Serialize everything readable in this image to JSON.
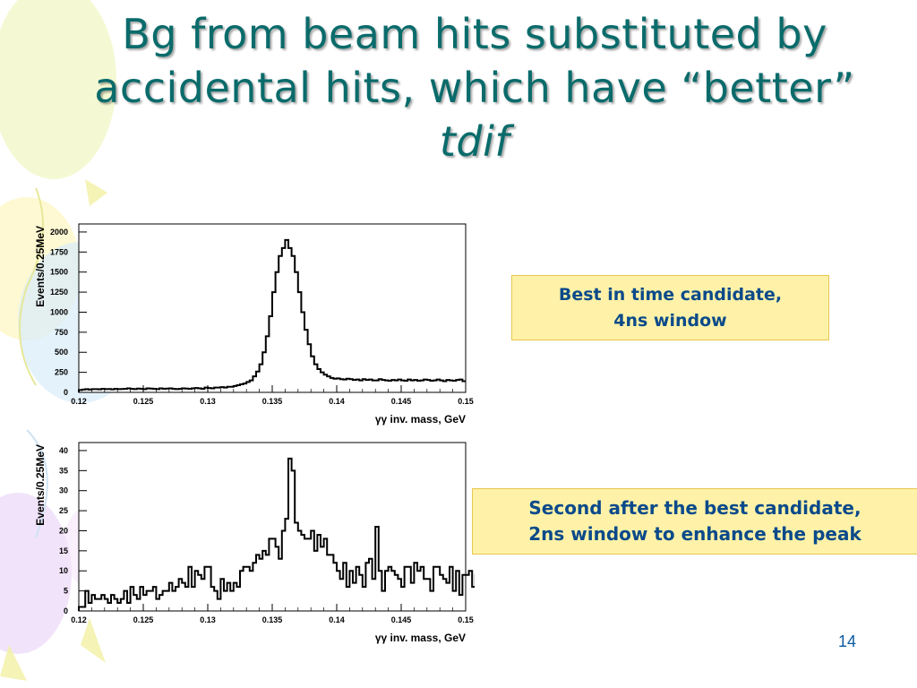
{
  "slide": {
    "title_main": "Bg from beam hits substituted by accidental hits, which have “better”",
    "title_emphasis": "tdif",
    "callouts": [
      {
        "line1": "Best in time candidate,",
        "line2": "4ns window"
      },
      {
        "line1": "Second after the best candidate,",
        "line2": "2ns window to enhance the peak"
      }
    ],
    "page_number": "14"
  },
  "colors": {
    "title": "#0a6b6b",
    "callout_bg": "#fff2a8",
    "callout_text": "#0b4a8a",
    "callout_border": "#e8c64f"
  },
  "chart_data": [
    {
      "type": "histogram",
      "xlabel": "γγ inv. mass, GeV",
      "ylabel": "Events/0.25MeV",
      "xlim": [
        0.12,
        0.15
      ],
      "ylim": [
        0,
        2100
      ],
      "x_ticks": [
        "0.12",
        "0.125",
        "0.13",
        "0.135",
        "0.14",
        "0.145",
        "0.15"
      ],
      "y_ticks": [
        "0",
        "250",
        "500",
        "750",
        "1000",
        "1250",
        "1500",
        "1750",
        "2000"
      ],
      "bin_start": 0.12,
      "bin_width": 0.00025,
      "values": [
        30,
        35,
        40,
        35,
        40,
        40,
        38,
        45,
        40,
        42,
        38,
        45,
        40,
        42,
        45,
        50,
        45,
        40,
        48,
        45,
        40,
        50,
        48,
        45,
        40,
        50,
        45,
        48,
        50,
        45,
        40,
        45,
        50,
        48,
        45,
        50,
        55,
        50,
        45,
        60,
        55,
        50,
        60,
        60,
        65,
        60,
        70,
        70,
        80,
        90,
        100,
        110,
        130,
        150,
        200,
        260,
        350,
        500,
        700,
        950,
        1250,
        1500,
        1700,
        1800,
        1900,
        1800,
        1700,
        1500,
        1250,
        1000,
        780,
        600,
        450,
        350,
        290,
        250,
        220,
        200,
        180,
        170,
        175,
        165,
        160,
        170,
        165,
        155,
        160,
        150,
        165,
        155,
        160,
        150,
        150,
        165,
        155,
        150,
        145,
        155,
        150,
        160,
        150,
        145,
        160,
        150,
        155,
        145,
        150,
        160,
        155,
        145,
        150,
        160,
        150,
        140,
        155,
        150,
        145,
        155,
        160,
        140
      ]
    },
    {
      "type": "histogram",
      "xlabel": "γγ inv. mass, GeV",
      "ylabel": "Events/0.25MeV",
      "xlim": [
        0.12,
        0.15
      ],
      "ylim": [
        0,
        42
      ],
      "x_ticks": [
        "0.12",
        "0.125",
        "0.13",
        "0.135",
        "0.14",
        "0.145",
        "0.15"
      ],
      "y_ticks": [
        "0",
        "5",
        "10",
        "15",
        "20",
        "25",
        "30",
        "35",
        "40"
      ],
      "bin_start": 0.12,
      "bin_width": 0.00025,
      "values": [
        1,
        1,
        5,
        2,
        4,
        3,
        3,
        4,
        3,
        2,
        4,
        3,
        2,
        3,
        5,
        2,
        6,
        4,
        3,
        6,
        4,
        5,
        5,
        6,
        3,
        4,
        5,
        5,
        7,
        5,
        6,
        8,
        7,
        6,
        11,
        6,
        10,
        9,
        8,
        11,
        11,
        6,
        5,
        3,
        8,
        5,
        7,
        5,
        7,
        6,
        10,
        11,
        11,
        10,
        12,
        14,
        13,
        15,
        14,
        18,
        18,
        16,
        13,
        20,
        23,
        38,
        35,
        22,
        20,
        19,
        18,
        18,
        20,
        15,
        19,
        16,
        18,
        14,
        14,
        12,
        10,
        8,
        12,
        6,
        10,
        7,
        11,
        9,
        6,
        12,
        13,
        8,
        21,
        10,
        5,
        10,
        11,
        10,
        9,
        8,
        6,
        11,
        11,
        7,
        12,
        10,
        11,
        8,
        8,
        5,
        11,
        11,
        9,
        8,
        7,
        11,
        5,
        10,
        4,
        9,
        9,
        10,
        6,
        9,
        9,
        10
      ]
    }
  ]
}
